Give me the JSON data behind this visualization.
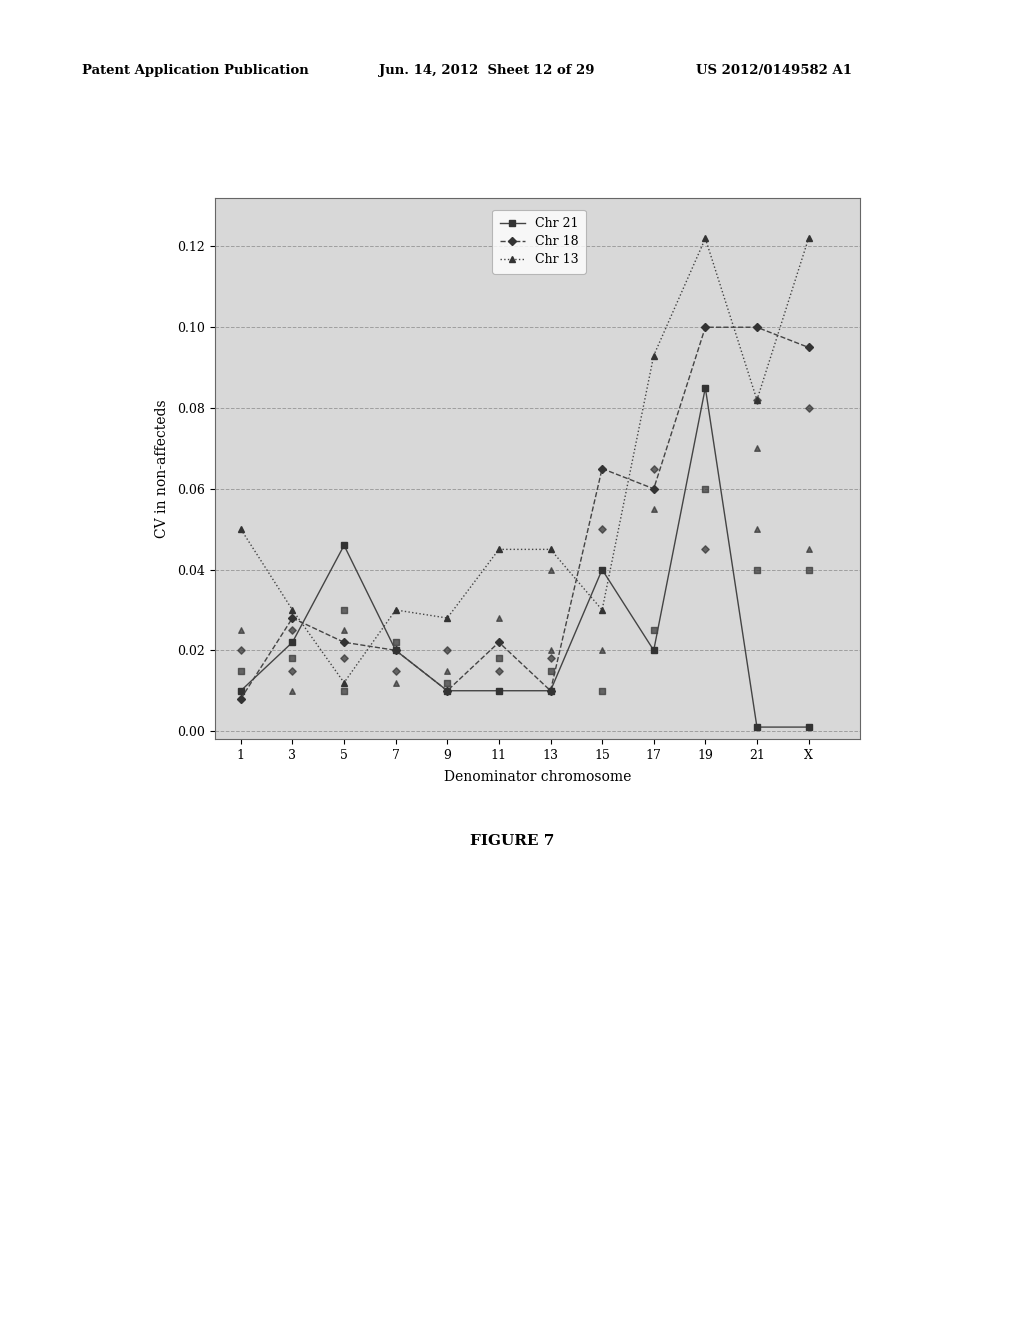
{
  "x_labels": [
    "1",
    "3",
    "5",
    "7",
    "9",
    "11",
    "13",
    "15",
    "17",
    "19",
    "21",
    "X"
  ],
  "x_positions": [
    1,
    3,
    5,
    7,
    9,
    11,
    13,
    15,
    17,
    19,
    21,
    23
  ],
  "chr21_y": [
    0.01,
    0.008,
    0.022,
    0.046,
    0.022,
    0.02,
    0.01,
    0.02,
    0.01,
    0.01,
    0.01,
    0.01,
    0.04,
    0.01,
    0.02,
    0.085,
    0.001,
    0.001
  ],
  "chr21_x": [
    1,
    1,
    3,
    5,
    5,
    5,
    7,
    7,
    9,
    9,
    11,
    11,
    13,
    13,
    15,
    19,
    21,
    23
  ],
  "chr18_y": [
    0.008,
    0.022,
    0.03,
    0.022,
    0.018,
    0.02,
    0.022,
    0.01,
    0.01,
    0.022,
    0.01,
    0.022,
    0.01,
    0.065,
    0.06,
    0.1,
    0.1,
    0.095
  ],
  "chr18_x": [
    1,
    1,
    3,
    5,
    5,
    7,
    7,
    9,
    9,
    11,
    11,
    13,
    13,
    15,
    17,
    19,
    21,
    23
  ],
  "chr13_y": [
    0.05,
    0.025,
    0.03,
    0.012,
    0.03,
    0.028,
    0.018,
    0.045,
    0.03,
    0.045,
    0.025,
    0.03,
    0.03,
    0.055,
    0.085,
    0.093,
    0.122,
    0.082,
    0.122
  ],
  "chr13_x": [
    1,
    3,
    3,
    5,
    7,
    7,
    9,
    11,
    11,
    13,
    13,
    15,
    15,
    15,
    17,
    19,
    19,
    21,
    23
  ],
  "chr21_line_x": [
    1,
    3,
    5,
    7,
    9,
    11,
    13,
    15,
    17,
    19,
    21,
    23
  ],
  "chr21_line_y": [
    0.01,
    0.022,
    0.046,
    0.02,
    0.01,
    0.01,
    0.01,
    0.04,
    0.02,
    0.085,
    0.001,
    0.001
  ],
  "chr18_line_x": [
    1,
    3,
    5,
    7,
    9,
    11,
    13,
    15,
    17,
    19,
    21,
    23
  ],
  "chr18_line_y": [
    0.008,
    0.028,
    0.022,
    0.02,
    0.01,
    0.022,
    0.01,
    0.065,
    0.06,
    0.1,
    0.1,
    0.095
  ],
  "chr13_line_x": [
    1,
    3,
    5,
    7,
    9,
    11,
    13,
    15,
    17,
    19,
    21,
    23
  ],
  "chr13_line_y": [
    0.05,
    0.03,
    0.012,
    0.03,
    0.028,
    0.045,
    0.045,
    0.03,
    0.093,
    0.122,
    0.082,
    0.122
  ],
  "ylabel": "CV in non-affecteds",
  "xlabel": "Denominator chromosome",
  "figure_label": "FIGURE 7",
  "ylim": [
    -0.002,
    0.132
  ],
  "yticks": [
    0.0,
    0.02,
    0.04,
    0.06,
    0.08,
    0.1,
    0.12
  ],
  "ytick_labels": [
    "0.00",
    "0.02",
    "0.04",
    "0.06",
    "0.08",
    "0.10",
    "0.12"
  ],
  "header_left": "Patent Application Publication",
  "header_mid": "Jun. 14, 2012  Sheet 12 of 29",
  "header_right": "US 2012/0149582 A1",
  "page_bg": "#ffffff",
  "plot_bg": "#d8d8d8",
  "line_color": "#444444",
  "marker_color": "#333333"
}
